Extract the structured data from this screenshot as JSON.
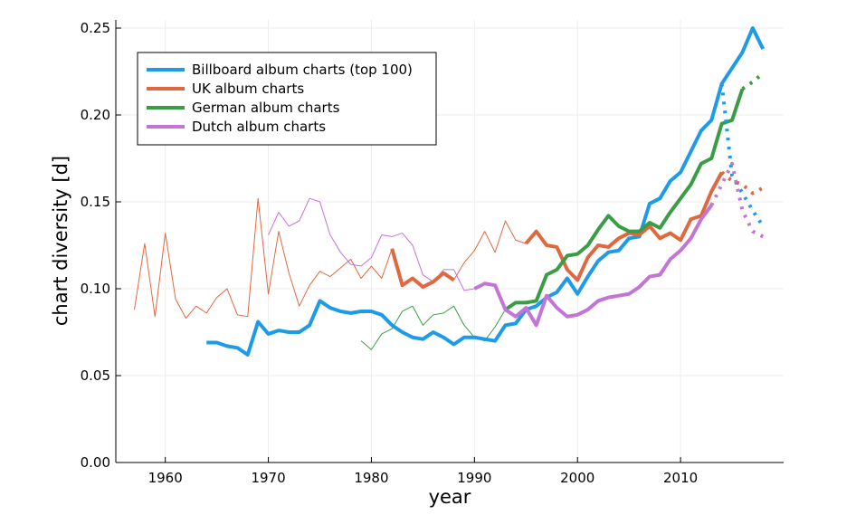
{
  "chart_data": {
    "type": "line",
    "x_label": "year",
    "y_label": "chart diversity [d]",
    "x": [
      1957,
      1958,
      1959,
      1960,
      1961,
      1962,
      1963,
      1964,
      1965,
      1966,
      1967,
      1968,
      1969,
      1970,
      1971,
      1972,
      1973,
      1974,
      1975,
      1976,
      1977,
      1978,
      1979,
      1980,
      1981,
      1982,
      1983,
      1984,
      1985,
      1986,
      1987,
      1988,
      1989,
      1990,
      1991,
      1992,
      1993,
      1994,
      1995,
      1996,
      1997,
      1998,
      1999,
      2000,
      2001,
      2002,
      2003,
      2004,
      2005,
      2006,
      2007,
      2008,
      2009,
      2010,
      2011,
      2012,
      2013,
      2014,
      2015,
      2016,
      2017,
      2018
    ],
    "xlim": [
      1955.2,
      2020
    ],
    "xticks": [
      1960,
      1970,
      1980,
      1990,
      2000,
      2010
    ],
    "ylim": [
      0,
      0.2547
    ],
    "yticks": [
      {
        "value": 0,
        "label": "0.00"
      },
      {
        "value": 0.05,
        "label": "0.05"
      },
      {
        "value": 0.1,
        "label": "0.10"
      },
      {
        "value": 0.15,
        "label": "0.15"
      },
      {
        "value": 0.2,
        "label": "0.20"
      },
      {
        "value": 0.25,
        "label": "0.25"
      }
    ],
    "grid": true,
    "legend": "top-left",
    "series": [
      {
        "name": "Billboard album charts (top 100)",
        "color": "#1e9be8",
        "values": [
          null,
          null,
          null,
          null,
          null,
          null,
          null,
          0.069,
          0.069,
          0.067,
          0.066,
          0.062,
          0.081,
          0.074,
          0.076,
          0.075,
          0.075,
          0.079,
          0.093,
          0.089,
          0.087,
          0.086,
          0.087,
          0.087,
          0.085,
          0.079,
          0.075,
          0.072,
          0.071,
          0.075,
          0.072,
          0.068,
          0.072,
          0.072,
          0.071,
          0.07,
          0.079,
          0.08,
          0.088,
          0.09,
          0.095,
          0.098,
          0.106,
          0.097,
          0.107,
          0.116,
          0.121,
          0.122,
          0.129,
          0.13,
          0.149,
          0.152,
          0.162,
          0.167,
          0.179,
          0.191,
          0.197,
          0.218,
          0.227,
          0.236,
          0.25,
          0.238
        ],
        "projected_values": [
          null,
          null,
          null,
          null,
          null,
          null,
          null,
          null,
          null,
          null,
          null,
          null,
          null,
          null,
          null,
          null,
          null,
          null,
          null,
          null,
          null,
          null,
          null,
          null,
          null,
          null,
          null,
          null,
          null,
          null,
          null,
          null,
          null,
          null,
          null,
          null,
          null,
          null,
          null,
          null,
          null,
          null,
          null,
          null,
          null,
          null,
          null,
          null,
          null,
          null,
          null,
          null,
          null,
          null,
          null,
          null,
          null,
          0.218,
          0.165,
          0.155,
          0.145,
          0.136
        ]
      },
      {
        "name": "UK album charts",
        "color": "#e0683f",
        "early_values": [
          0.088,
          0.126,
          0.084,
          0.132,
          0.094,
          0.083,
          0.09,
          0.086,
          0.095,
          0.1,
          0.085,
          0.084,
          0.152,
          0.097,
          0.133,
          0.109,
          0.09,
          0.102,
          0.11,
          0.107,
          0.112,
          0.117,
          0.106,
          0.113,
          0.106,
          0.123,
          null,
          null,
          null,
          null,
          null,
          0.105,
          0.115,
          0.122,
          0.133,
          0.121,
          0.139,
          0.128,
          0.126,
          null,
          null,
          null,
          null,
          null,
          null,
          null,
          null,
          null,
          null,
          null,
          null,
          null,
          null,
          null,
          null,
          null,
          null,
          null,
          null,
          null,
          null,
          null
        ],
        "values": [
          null,
          null,
          null,
          null,
          null,
          null,
          null,
          null,
          null,
          null,
          null,
          null,
          null,
          null,
          null,
          null,
          null,
          null,
          null,
          null,
          null,
          null,
          null,
          null,
          null,
          0.123,
          0.102,
          0.106,
          0.101,
          0.104,
          0.109,
          0.105,
          null,
          null,
          null,
          null,
          null,
          null,
          0.126,
          0.133,
          0.125,
          0.124,
          0.111,
          0.105,
          0.118,
          0.125,
          0.124,
          0.129,
          0.132,
          0.131,
          0.136,
          0.129,
          0.132,
          0.128,
          0.14,
          0.142,
          0.156,
          0.167,
          null,
          null,
          null,
          null
        ],
        "projected_values": [
          null,
          null,
          null,
          null,
          null,
          null,
          null,
          null,
          null,
          null,
          null,
          null,
          null,
          null,
          null,
          null,
          null,
          null,
          null,
          null,
          null,
          null,
          null,
          null,
          null,
          null,
          null,
          null,
          null,
          null,
          null,
          null,
          null,
          null,
          null,
          null,
          null,
          null,
          null,
          null,
          null,
          null,
          null,
          null,
          null,
          null,
          null,
          null,
          null,
          null,
          null,
          null,
          null,
          null,
          null,
          null,
          null,
          0.167,
          0.162,
          0.16,
          0.155,
          0.158
        ]
      },
      {
        "name": "German album charts",
        "color": "#3a9d45",
        "early_values": [
          null,
          null,
          null,
          null,
          null,
          null,
          null,
          null,
          null,
          null,
          null,
          null,
          null,
          null,
          null,
          null,
          null,
          null,
          null,
          null,
          null,
          null,
          0.07,
          0.065,
          0.074,
          0.077,
          0.087,
          0.09,
          0.079,
          0.085,
          0.086,
          0.09,
          0.079,
          0.072,
          0.07,
          0.078,
          0.088,
          null,
          null,
          null,
          null,
          null,
          null,
          null,
          null,
          null,
          null,
          null,
          null,
          null,
          null,
          null,
          null,
          null,
          null,
          null,
          null,
          null,
          null,
          null,
          null,
          null
        ],
        "values": [
          null,
          null,
          null,
          null,
          null,
          null,
          null,
          null,
          null,
          null,
          null,
          null,
          null,
          null,
          null,
          null,
          null,
          null,
          null,
          null,
          null,
          null,
          null,
          null,
          null,
          null,
          null,
          null,
          null,
          null,
          null,
          null,
          null,
          null,
          null,
          null,
          0.088,
          0.092,
          0.092,
          0.093,
          0.108,
          0.111,
          0.119,
          0.12,
          0.125,
          0.134,
          0.142,
          0.136,
          0.133,
          0.133,
          0.138,
          0.135,
          0.144,
          0.152,
          0.16,
          0.172,
          0.175,
          0.195,
          0.197,
          0.215,
          null,
          null
        ],
        "projected_values": [
          null,
          null,
          null,
          null,
          null,
          null,
          null,
          null,
          null,
          null,
          null,
          null,
          null,
          null,
          null,
          null,
          null,
          null,
          null,
          null,
          null,
          null,
          null,
          null,
          null,
          null,
          null,
          null,
          null,
          null,
          null,
          null,
          null,
          null,
          null,
          null,
          null,
          null,
          null,
          null,
          null,
          null,
          null,
          null,
          null,
          null,
          null,
          null,
          null,
          null,
          null,
          null,
          null,
          null,
          null,
          null,
          null,
          null,
          null,
          0.215,
          0.219,
          0.224
        ]
      },
      {
        "name": "Dutch album charts",
        "color": "#c474d6",
        "early_values": [
          null,
          null,
          null,
          null,
          null,
          null,
          null,
          null,
          null,
          null,
          null,
          null,
          null,
          0.131,
          0.144,
          0.136,
          0.139,
          0.152,
          0.15,
          0.131,
          0.121,
          0.114,
          0.113,
          0.118,
          0.131,
          0.13,
          0.132,
          0.125,
          0.108,
          0.104,
          0.111,
          0.111,
          0.099,
          0.1,
          null,
          null,
          null,
          null,
          null,
          null,
          null,
          null,
          null,
          null,
          null,
          null,
          null,
          null,
          null,
          null,
          null,
          null,
          null,
          null,
          null,
          null,
          null,
          null,
          null,
          null,
          null,
          null
        ],
        "values": [
          null,
          null,
          null,
          null,
          null,
          null,
          null,
          null,
          null,
          null,
          null,
          null,
          null,
          null,
          null,
          null,
          null,
          null,
          null,
          null,
          null,
          null,
          null,
          null,
          null,
          null,
          null,
          null,
          null,
          null,
          null,
          null,
          null,
          0.1,
          0.103,
          0.102,
          0.088,
          0.084,
          0.089,
          0.079,
          0.096,
          0.089,
          0.084,
          0.085,
          0.088,
          0.093,
          0.095,
          0.096,
          0.097,
          0.101,
          0.107,
          0.108,
          0.117,
          0.122,
          0.129,
          0.14,
          0.148,
          null,
          null,
          null,
          null,
          null
        ],
        "projected_values": [
          null,
          null,
          null,
          null,
          null,
          null,
          null,
          null,
          null,
          null,
          null,
          null,
          null,
          null,
          null,
          null,
          null,
          null,
          null,
          null,
          null,
          null,
          null,
          null,
          null,
          null,
          null,
          null,
          null,
          null,
          null,
          null,
          null,
          null,
          null,
          null,
          null,
          null,
          null,
          null,
          null,
          null,
          null,
          null,
          null,
          null,
          null,
          null,
          null,
          null,
          null,
          null,
          null,
          null,
          null,
          null,
          0.148,
          0.16,
          0.172,
          0.145,
          0.133,
          0.13
        ]
      }
    ]
  }
}
